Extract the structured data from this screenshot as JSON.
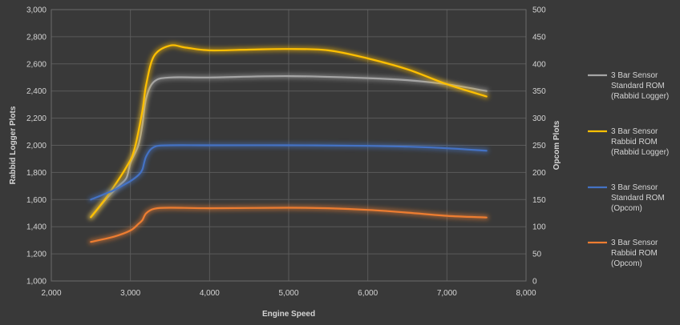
{
  "chart_data": {
    "type": "line",
    "xlabel": "Engine Speed",
    "ylabel": "Rabbid Logger Plots",
    "y2label": "Opcom Plots",
    "xlim": [
      2000,
      8000
    ],
    "ylim": [
      1000,
      3000
    ],
    "y2lim": [
      0,
      500
    ],
    "x_ticks": [
      "2,000",
      "3,000",
      "4,000",
      "5,000",
      "6,000",
      "7,000",
      "8,000"
    ],
    "y_ticks": [
      "1,000",
      "1,200",
      "1,400",
      "1,600",
      "1,800",
      "2,000",
      "2,200",
      "2,400",
      "2,600",
      "2,800",
      "3,000"
    ],
    "y2_ticks": [
      "0",
      "50",
      "100",
      "150",
      "200",
      "250",
      "300",
      "350",
      "400",
      "450",
      "500"
    ],
    "grid": true,
    "legend_position": "right",
    "series": [
      {
        "name": "3 Bar Sensor Standard ROM (Rabbid Logger)",
        "legend_lines": [
          "3 Bar Sensor",
          "Standard ROM",
          "(Rabbid Logger)"
        ],
        "axis": "left",
        "color": "#a5a5a5",
        "x": [
          2500,
          2700,
          2850,
          2950,
          3000,
          3100,
          3150,
          3200,
          3300,
          3500,
          4000,
          5000,
          6000,
          6500,
          7000,
          7500
        ],
        "y": [
          1470,
          1610,
          1700,
          1760,
          1870,
          2000,
          2150,
          2350,
          2470,
          2500,
          2500,
          2510,
          2495,
          2480,
          2450,
          2400
        ]
      },
      {
        "name": "3 Bar Sensor Rabbid ROM (Rabbid Logger)",
        "legend_lines": [
          "3 Bar Sensor",
          "Rabbid ROM",
          "(Rabbid Logger)"
        ],
        "axis": "left",
        "color": "#ffc000",
        "x": [
          2500,
          2700,
          2950,
          3050,
          3150,
          3200,
          3300,
          3500,
          3700,
          4000,
          4500,
          5000,
          5500,
          6000,
          6500,
          7000,
          7500
        ],
        "y": [
          1470,
          1620,
          1840,
          1970,
          2250,
          2450,
          2660,
          2735,
          2720,
          2700,
          2705,
          2710,
          2700,
          2640,
          2560,
          2450,
          2360
        ]
      },
      {
        "name": "3 Bar Sensor Standard ROM (Opcom)",
        "legend_lines": [
          "3 Bar Sensor",
          "Standard ROM",
          "(Opcom)"
        ],
        "axis": "right",
        "color": "#4472c4",
        "x": [
          2500,
          2800,
          2950,
          3000,
          3100,
          3150,
          3200,
          3300,
          3500,
          4000,
          5000,
          6000,
          6800,
          7500
        ],
        "y": [
          150,
          168,
          180,
          184,
          195,
          205,
          230,
          247,
          250,
          250,
          250,
          249,
          246,
          240
        ]
      },
      {
        "name": "3 Bar Sensor Rabbid ROM (Opcom)",
        "legend_lines": [
          "3 Bar Sensor",
          "Rabbid ROM",
          "(Opcom)"
        ],
        "axis": "right",
        "color": "#ed7d31",
        "x": [
          2500,
          2800,
          3000,
          3100,
          3150,
          3200,
          3300,
          3500,
          4000,
          5000,
          5500,
          6000,
          6500,
          7000,
          7500
        ],
        "y": [
          72,
          82,
          93,
          105,
          112,
          125,
          133,
          135,
          134,
          135,
          134,
          131,
          126,
          120,
          117
        ]
      }
    ]
  }
}
